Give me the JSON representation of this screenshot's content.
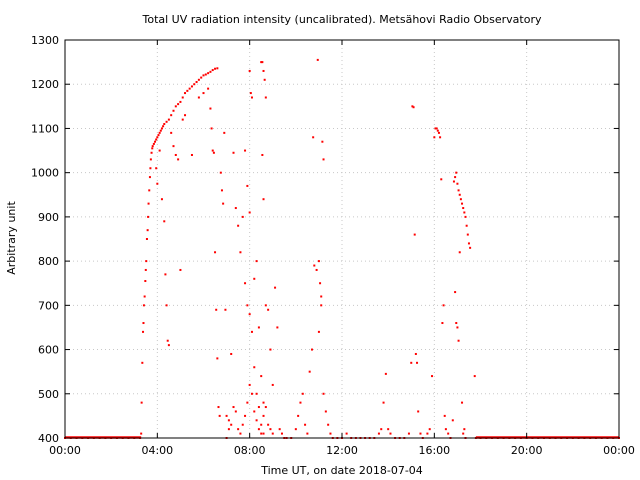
{
  "chart_data": {
    "type": "scatter",
    "title": "Total UV radiation intensity (uncalibrated). Metsähovi Radio Observatory",
    "xlabel": "Time UT, on date 2018-07-04",
    "ylabel": "Arbitrary unit",
    "xlim": [
      "00:00",
      "24:00"
    ],
    "ylim": [
      400,
      1300
    ],
    "x_ticks": [
      "00:00",
      "04:00",
      "08:00",
      "12:00",
      "16:00",
      "20:00",
      "00:00"
    ],
    "y_ticks": [
      400,
      500,
      600,
      700,
      800,
      900,
      1000,
      1100,
      1200,
      1300
    ],
    "grid": true,
    "marker_color": "#ff0000",
    "x_unit": "hours UT",
    "series": [
      {
        "points": [
          [
            0.0,
            400
          ],
          [
            0.25,
            400
          ],
          [
            0.5,
            400
          ],
          [
            0.75,
            400
          ],
          [
            1.0,
            400
          ],
          [
            1.25,
            400
          ],
          [
            1.5,
            400
          ],
          [
            1.75,
            400
          ],
          [
            2.0,
            400
          ],
          [
            2.25,
            400
          ],
          [
            2.5,
            400
          ],
          [
            2.75,
            400
          ],
          [
            3.0,
            400
          ],
          [
            3.25,
            400
          ],
          [
            3.3,
            410
          ],
          [
            3.32,
            480
          ],
          [
            3.35,
            570
          ],
          [
            3.38,
            640
          ],
          [
            3.4,
            660
          ],
          [
            3.42,
            700
          ],
          [
            3.45,
            720
          ],
          [
            3.48,
            755
          ],
          [
            3.5,
            780
          ],
          [
            3.52,
            800
          ],
          [
            3.55,
            850
          ],
          [
            3.58,
            870
          ],
          [
            3.6,
            900
          ],
          [
            3.62,
            930
          ],
          [
            3.65,
            960
          ],
          [
            3.68,
            990
          ],
          [
            3.7,
            1010
          ],
          [
            3.72,
            1030
          ],
          [
            3.75,
            1045
          ],
          [
            3.78,
            1055
          ],
          [
            3.8,
            1060
          ],
          [
            3.85,
            1065
          ],
          [
            3.9,
            1070
          ],
          [
            3.95,
            1075
          ],
          [
            4.0,
            1080
          ],
          [
            4.05,
            1085
          ],
          [
            4.1,
            1090
          ],
          [
            4.15,
            1095
          ],
          [
            4.2,
            1100
          ],
          [
            4.25,
            1105
          ],
          [
            4.3,
            1110
          ],
          [
            4.4,
            1115
          ],
          [
            4.5,
            1120
          ],
          [
            4.6,
            1130
          ],
          [
            4.7,
            1140
          ],
          [
            4.8,
            1150
          ],
          [
            4.9,
            1155
          ],
          [
            5.0,
            1160
          ],
          [
            5.1,
            1170
          ],
          [
            5.2,
            1180
          ],
          [
            5.3,
            1185
          ],
          [
            5.4,
            1190
          ],
          [
            5.5,
            1195
          ],
          [
            5.6,
            1200
          ],
          [
            5.7,
            1205
          ],
          [
            5.8,
            1210
          ],
          [
            5.9,
            1215
          ],
          [
            6.0,
            1220
          ],
          [
            6.1,
            1222
          ],
          [
            6.2,
            1225
          ],
          [
            6.3,
            1228
          ],
          [
            6.4,
            1232
          ],
          [
            6.5,
            1235
          ],
          [
            6.6,
            1236
          ],
          [
            3.95,
            1010
          ],
          [
            4.0,
            975
          ],
          [
            4.1,
            1050
          ],
          [
            4.2,
            940
          ],
          [
            4.3,
            890
          ],
          [
            4.35,
            770
          ],
          [
            4.4,
            700
          ],
          [
            4.45,
            620
          ],
          [
            4.5,
            610
          ],
          [
            4.6,
            1090
          ],
          [
            4.7,
            1060
          ],
          [
            4.8,
            1040
          ],
          [
            4.9,
            1030
          ],
          [
            5.0,
            780
          ],
          [
            5.1,
            1120
          ],
          [
            5.2,
            1130
          ],
          [
            5.5,
            1040
          ],
          [
            5.8,
            1170
          ],
          [
            6.0,
            1180
          ],
          [
            6.2,
            1190
          ],
          [
            6.3,
            1145
          ],
          [
            6.35,
            1100
          ],
          [
            6.4,
            1050
          ],
          [
            6.45,
            1045
          ],
          [
            6.5,
            820
          ],
          [
            6.55,
            690
          ],
          [
            6.6,
            580
          ],
          [
            6.65,
            470
          ],
          [
            6.7,
            450
          ],
          [
            6.75,
            1000
          ],
          [
            6.8,
            960
          ],
          [
            6.85,
            930
          ],
          [
            6.9,
            1090
          ],
          [
            6.95,
            690
          ],
          [
            7.0,
            400
          ],
          [
            7.1,
            420
          ],
          [
            7.2,
            590
          ],
          [
            7.3,
            1045
          ],
          [
            7.4,
            920
          ],
          [
            7.5,
            880
          ],
          [
            7.6,
            820
          ],
          [
            7.7,
            900
          ],
          [
            7.8,
            750
          ],
          [
            7.9,
            700
          ],
          [
            8.0,
            680
          ],
          [
            8.1,
            640
          ],
          [
            8.2,
            560
          ],
          [
            8.3,
            500
          ],
          [
            8.4,
            470
          ],
          [
            8.5,
            430
          ],
          [
            8.6,
            410
          ],
          [
            8.0,
            1230
          ],
          [
            8.05,
            1180
          ],
          [
            8.1,
            1170
          ],
          [
            8.5,
            1250
          ],
          [
            8.55,
            1250
          ],
          [
            8.6,
            1230
          ],
          [
            8.65,
            1210
          ],
          [
            8.7,
            1170
          ],
          [
            8.55,
            1040
          ],
          [
            8.6,
            940
          ],
          [
            8.7,
            700
          ],
          [
            8.8,
            690
          ],
          [
            8.9,
            600
          ],
          [
            9.0,
            520
          ],
          [
            7.8,
            1050
          ],
          [
            7.9,
            970
          ],
          [
            8.0,
            910
          ],
          [
            8.2,
            760
          ],
          [
            8.3,
            800
          ],
          [
            8.4,
            650
          ],
          [
            8.5,
            540
          ],
          [
            8.6,
            480
          ],
          [
            7.0,
            450
          ],
          [
            7.1,
            440
          ],
          [
            7.2,
            430
          ],
          [
            7.3,
            470
          ],
          [
            7.4,
            460
          ],
          [
            7.5,
            420
          ],
          [
            7.6,
            410
          ],
          [
            7.7,
            430
          ],
          [
            7.8,
            450
          ],
          [
            7.9,
            480
          ],
          [
            8.0,
            520
          ],
          [
            8.1,
            500
          ],
          [
            8.2,
            460
          ],
          [
            8.3,
            440
          ],
          [
            8.4,
            420
          ],
          [
            8.5,
            410
          ],
          [
            8.6,
            450
          ],
          [
            8.7,
            470
          ],
          [
            8.8,
            430
          ],
          [
            8.9,
            420
          ],
          [
            9.0,
            410
          ],
          [
            9.1,
            740
          ],
          [
            9.2,
            650
          ],
          [
            9.3,
            420
          ],
          [
            9.4,
            410
          ],
          [
            9.5,
            400
          ],
          [
            9.6,
            400
          ],
          [
            9.8,
            400
          ],
          [
            10.0,
            420
          ],
          [
            10.1,
            450
          ],
          [
            10.2,
            480
          ],
          [
            10.3,
            500
          ],
          [
            10.4,
            430
          ],
          [
            10.5,
            410
          ],
          [
            10.6,
            550
          ],
          [
            10.7,
            600
          ],
          [
            10.75,
            1080
          ],
          [
            10.8,
            790
          ],
          [
            10.9,
            780
          ],
          [
            10.95,
            1255
          ],
          [
            11.0,
            800
          ],
          [
            11.05,
            750
          ],
          [
            11.1,
            720
          ],
          [
            11.15,
            1070
          ],
          [
            11.2,
            1030
          ],
          [
            11.0,
            640
          ],
          [
            11.1,
            700
          ],
          [
            11.2,
            500
          ],
          [
            11.3,
            460
          ],
          [
            11.4,
            430
          ],
          [
            11.5,
            410
          ],
          [
            11.6,
            400
          ],
          [
            11.8,
            400
          ],
          [
            12.0,
            400
          ],
          [
            12.2,
            410
          ],
          [
            12.4,
            400
          ],
          [
            12.6,
            400
          ],
          [
            12.8,
            400
          ],
          [
            13.0,
            400
          ],
          [
            13.2,
            400
          ],
          [
            13.4,
            400
          ],
          [
            13.6,
            410
          ],
          [
            13.7,
            420
          ],
          [
            13.8,
            480
          ],
          [
            13.9,
            545
          ],
          [
            14.0,
            420
          ],
          [
            14.1,
            410
          ],
          [
            14.3,
            400
          ],
          [
            14.5,
            400
          ],
          [
            14.7,
            400
          ],
          [
            14.9,
            410
          ],
          [
            15.0,
            570
          ],
          [
            15.05,
            1150
          ],
          [
            15.1,
            1148
          ],
          [
            15.15,
            860
          ],
          [
            15.2,
            590
          ],
          [
            15.25,
            570
          ],
          [
            15.3,
            460
          ],
          [
            15.4,
            410
          ],
          [
            15.5,
            400
          ],
          [
            15.7,
            410
          ],
          [
            15.8,
            420
          ],
          [
            15.9,
            540
          ],
          [
            16.0,
            1080
          ],
          [
            16.05,
            1100
          ],
          [
            16.1,
            1100
          ],
          [
            16.15,
            1095
          ],
          [
            16.2,
            1090
          ],
          [
            16.25,
            1080
          ],
          [
            16.3,
            985
          ],
          [
            16.35,
            660
          ],
          [
            16.4,
            700
          ],
          [
            16.45,
            450
          ],
          [
            16.5,
            420
          ],
          [
            16.6,
            410
          ],
          [
            16.7,
            400
          ],
          [
            16.8,
            440
          ],
          [
            16.85,
            980
          ],
          [
            16.9,
            990
          ],
          [
            16.95,
            1000
          ],
          [
            17.0,
            975
          ],
          [
            17.05,
            960
          ],
          [
            17.1,
            950
          ],
          [
            17.15,
            940
          ],
          [
            17.2,
            930
          ],
          [
            17.25,
            920
          ],
          [
            17.3,
            910
          ],
          [
            17.35,
            900
          ],
          [
            17.4,
            880
          ],
          [
            17.45,
            860
          ],
          [
            17.5,
            840
          ],
          [
            17.55,
            830
          ],
          [
            16.9,
            730
          ],
          [
            16.95,
            660
          ],
          [
            17.0,
            650
          ],
          [
            17.05,
            620
          ],
          [
            17.1,
            820
          ],
          [
            17.2,
            480
          ],
          [
            17.25,
            410
          ],
          [
            17.3,
            420
          ],
          [
            17.35,
            400
          ],
          [
            17.75,
            540
          ],
          [
            17.8,
            400
          ],
          [
            18.0,
            400
          ],
          [
            18.25,
            400
          ],
          [
            18.5,
            400
          ],
          [
            18.75,
            400
          ],
          [
            19.0,
            400
          ],
          [
            19.25,
            400
          ],
          [
            19.5,
            400
          ],
          [
            19.75,
            400
          ],
          [
            20.0,
            400
          ],
          [
            20.25,
            400
          ],
          [
            20.5,
            400
          ],
          [
            20.75,
            400
          ],
          [
            21.0,
            400
          ],
          [
            21.25,
            400
          ],
          [
            21.5,
            400
          ],
          [
            21.75,
            400
          ],
          [
            22.0,
            400
          ],
          [
            22.25,
            400
          ],
          [
            22.5,
            400
          ],
          [
            22.75,
            400
          ],
          [
            23.0,
            400
          ],
          [
            23.25,
            400
          ],
          [
            23.5,
            400
          ],
          [
            23.75,
            400
          ],
          [
            24.0,
            400
          ]
        ]
      }
    ]
  }
}
